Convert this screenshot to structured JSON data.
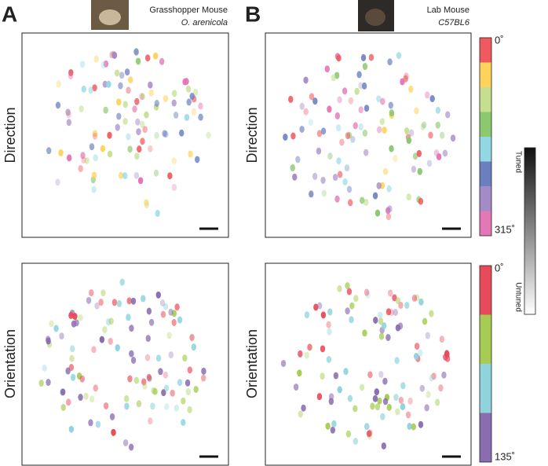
{
  "figure": {
    "panels": [
      {
        "label": "A",
        "species": "Grasshopper Mouse",
        "strain": "O. arenicola"
      },
      {
        "label": "B",
        "species": "Lab Mouse",
        "strain": "C57BL6"
      }
    ],
    "rows": [
      "Direction",
      "Orientation"
    ],
    "direction_scale": {
      "top": "0˚",
      "bottom": "315˚",
      "colors": [
        "#f05a5f",
        "#fdd35a",
        "#c5df8e",
        "#8cc870",
        "#92d8e4",
        "#6b7fbf",
        "#a48ac6",
        "#e477b6"
      ]
    },
    "orientation_scale": {
      "top": "0˚",
      "bottom": "135˚",
      "colors": [
        "#e94a5a",
        "#a6cc52",
        "#8fd3dd",
        "#8a6db0"
      ]
    },
    "tuning_scale": {
      "top": "Tuned",
      "bottom": "Untuned"
    }
  }
}
